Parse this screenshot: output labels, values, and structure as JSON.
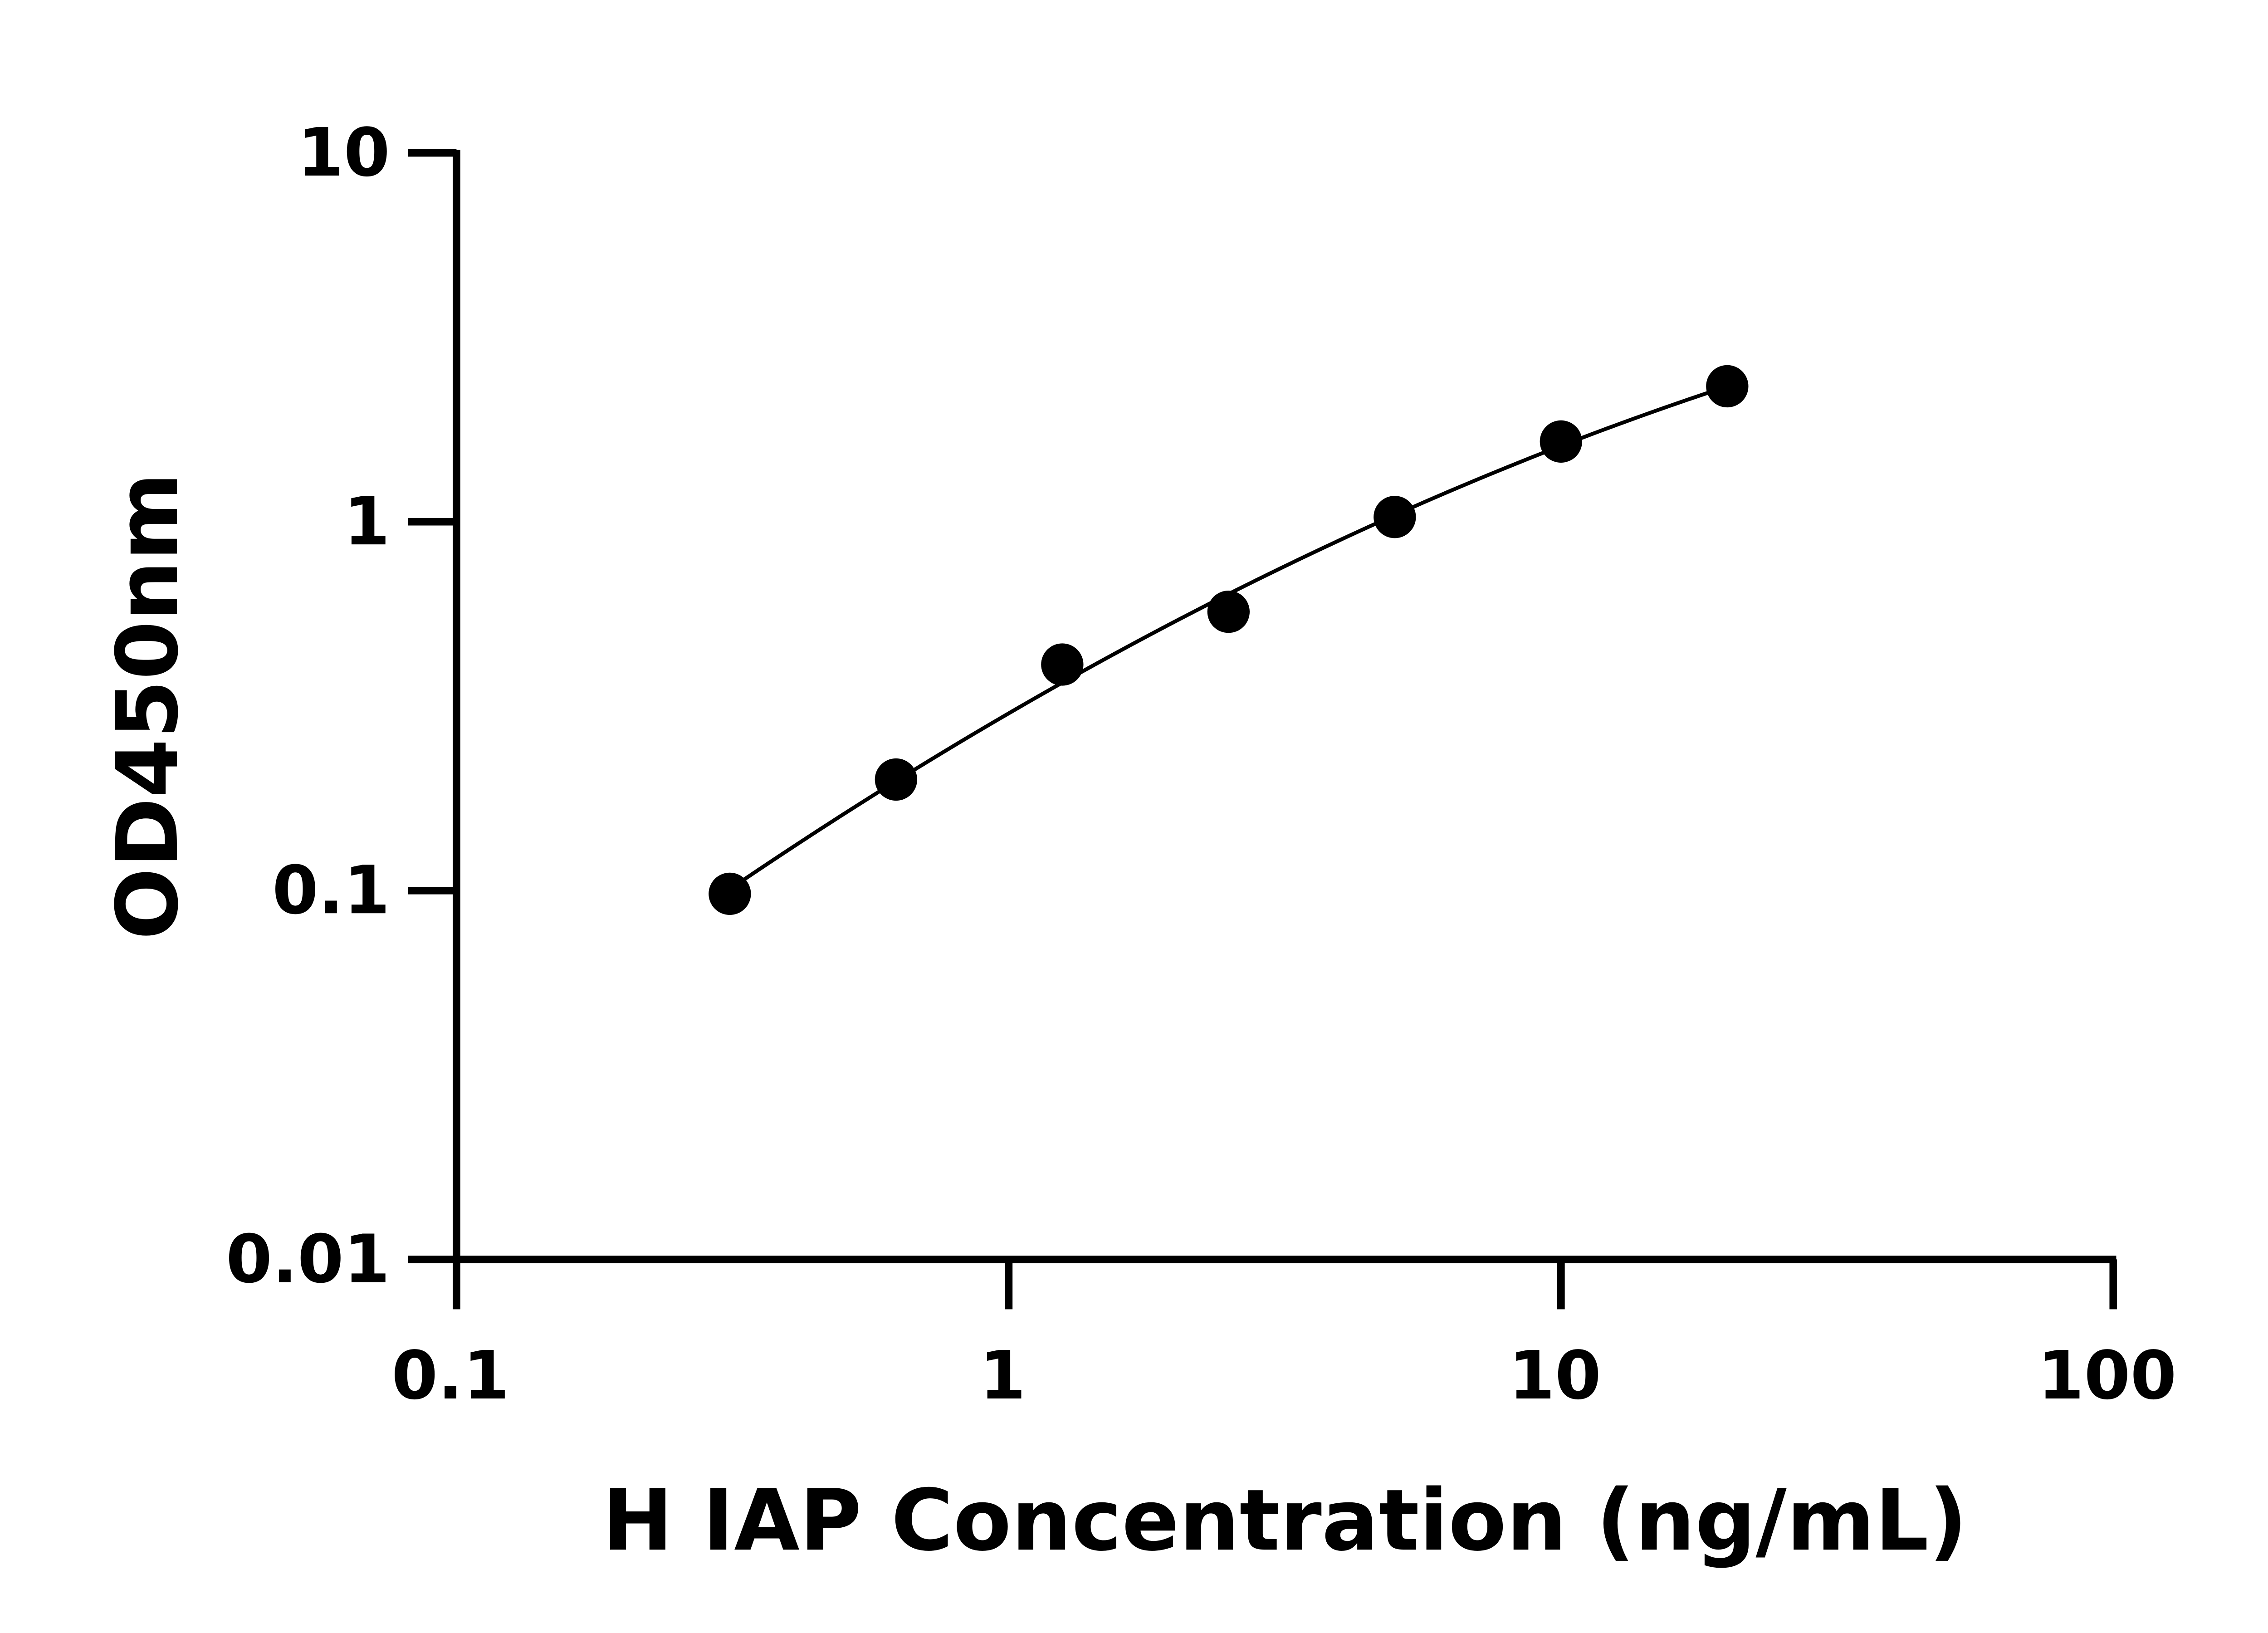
{
  "chart_data": {
    "type": "scatter",
    "title": "",
    "xlabel": "H IAP Concentration (ng/mL)",
    "ylabel": "OD450nm",
    "x_scale": "log",
    "y_scale": "log",
    "xlim": [
      0.1,
      100
    ],
    "ylim": [
      0.01,
      10
    ],
    "x_ticks": [
      "0.1",
      "1",
      "10",
      "100"
    ],
    "y_ticks": [
      "0.01",
      "0.1",
      "1",
      "10"
    ],
    "grid": false,
    "fit_line": true,
    "marker_color": "#000000",
    "line_color": "#000000",
    "series": [
      {
        "x": [
          0.3125,
          0.625,
          1.25,
          2.5,
          5,
          10,
          20
        ],
        "y": [
          0.098,
          0.2,
          0.41,
          0.57,
          1.03,
          1.65,
          2.33
        ]
      }
    ]
  }
}
